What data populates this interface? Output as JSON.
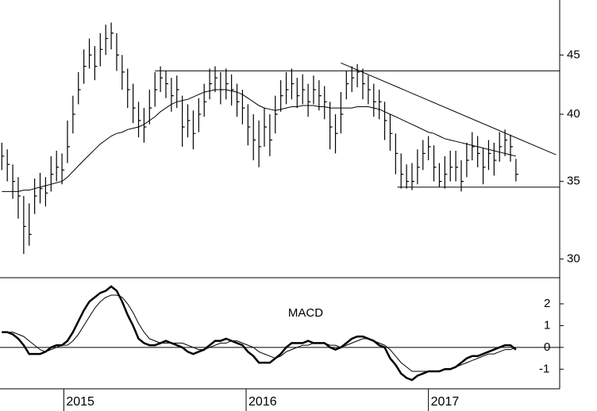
{
  "chart_data": {
    "type": "ohlc",
    "log_scale": true,
    "x": [
      2014.66,
      2014.69,
      2014.72,
      2014.75,
      2014.78,
      2014.81,
      2014.84,
      2014.87,
      2014.9,
      2014.93,
      2014.96,
      2014.99,
      2015.02,
      2015.05,
      2015.08,
      2015.11,
      2015.14,
      2015.17,
      2015.2,
      2015.23,
      2015.26,
      2015.29,
      2015.32,
      2015.35,
      2015.38,
      2015.41,
      2015.44,
      2015.47,
      2015.5,
      2015.53,
      2015.56,
      2015.59,
      2015.62,
      2015.65,
      2015.68,
      2015.71,
      2015.74,
      2015.77,
      2015.8,
      2015.83,
      2015.86,
      2015.89,
      2015.92,
      2015.95,
      2015.98,
      2016.01,
      2016.04,
      2016.07,
      2016.1,
      2016.13,
      2016.16,
      2016.19,
      2016.22,
      2016.25,
      2016.28,
      2016.31,
      2016.34,
      2016.37,
      2016.4,
      2016.43,
      2016.46,
      2016.49,
      2016.52,
      2016.55,
      2016.58,
      2016.61,
      2016.64,
      2016.67,
      2016.7,
      2016.73,
      2016.76,
      2016.79,
      2016.82,
      2016.85,
      2016.88,
      2016.91,
      2016.94,
      2016.97,
      2017.0,
      2017.03,
      2017.06,
      2017.09,
      2017.12,
      2017.15,
      2017.18,
      2017.21,
      2017.24,
      2017.27,
      2017.3,
      2017.33,
      2017.36,
      2017.39,
      2017.42,
      2017.45,
      2017.48
    ],
    "high": [
      37.8,
      37.3,
      36.2,
      35.3,
      34.0,
      33.5,
      35.2,
      35.6,
      35.3,
      36.8,
      37.2,
      37.0,
      39.5,
      41.5,
      43.5,
      45.5,
      46.5,
      45.8,
      47.0,
      47.8,
      48.0,
      47.0,
      45.0,
      43.8,
      42.5,
      41.0,
      40.5,
      42.0,
      43.5,
      44.0,
      43.6,
      43.0,
      43.2,
      41.5,
      40.8,
      40.3,
      41.3,
      42.5,
      43.8,
      44.0,
      43.5,
      43.8,
      43.3,
      42.5,
      42.0,
      40.8,
      40.0,
      39.5,
      40.5,
      40.0,
      41.5,
      42.8,
      43.5,
      43.8,
      43.0,
      43.3,
      42.5,
      43.2,
      42.8,
      42.3,
      41.0,
      40.0,
      41.8,
      43.6,
      44.0,
      44.2,
      43.8,
      43.2,
      42.5,
      42.0,
      41.0,
      40.0,
      38.5,
      37.0,
      36.2,
      36.3,
      37.3,
      38.0,
      38.3,
      37.6,
      36.3,
      36.8,
      37.2,
      37.2,
      36.5,
      37.8,
      38.6,
      38.3,
      37.4,
      38.0,
      37.8,
      38.6,
      38.8,
      38.4,
      36.6
    ],
    "low": [
      35.8,
      35.0,
      33.8,
      32.5,
      30.3,
      30.8,
      32.8,
      33.5,
      33.3,
      34.3,
      35.0,
      34.8,
      36.3,
      38.5,
      40.8,
      42.5,
      43.8,
      42.8,
      44.0,
      45.0,
      45.5,
      43.6,
      42.0,
      40.5,
      39.3,
      38.2,
      37.8,
      39.2,
      40.6,
      41.8,
      41.3,
      40.2,
      40.5,
      37.5,
      38.2,
      37.3,
      38.6,
      39.8,
      41.2,
      41.8,
      40.8,
      41.2,
      40.7,
      39.8,
      39.2,
      37.6,
      36.5,
      36.0,
      37.5,
      36.8,
      38.5,
      40.2,
      40.8,
      41.2,
      40.5,
      40.8,
      39.8,
      40.8,
      40.3,
      39.6,
      37.3,
      37.0,
      38.5,
      41.2,
      41.8,
      42.2,
      41.2,
      40.8,
      39.8,
      39.6,
      38.0,
      37.2,
      35.5,
      34.5,
      34.5,
      34.4,
      34.8,
      35.8,
      36.5,
      35.0,
      34.6,
      34.5,
      35.0,
      35.0,
      34.3,
      35.3,
      36.5,
      36.0,
      34.8,
      35.8,
      35.4,
      36.4,
      36.8,
      36.4,
      35.0
    ],
    "close": [
      36.8,
      36.2,
      35.0,
      34.0,
      32.0,
      31.5,
      34.0,
      34.5,
      34.2,
      35.5,
      36.0,
      35.8,
      37.5,
      40.0,
      42.0,
      44.0,
      45.0,
      44.0,
      45.5,
      46.5,
      47.0,
      45.0,
      43.5,
      42.0,
      40.5,
      39.5,
      39.0,
      40.5,
      42.0,
      43.0,
      42.5,
      41.5,
      42.0,
      39.0,
      39.5,
      38.5,
      40.0,
      41.0,
      42.5,
      43.0,
      42.0,
      42.5,
      42.0,
      41.0,
      40.5,
      39.0,
      38.0,
      37.5,
      39.0,
      38.0,
      40.0,
      41.5,
      42.0,
      42.5,
      41.5,
      42.0,
      41.0,
      42.0,
      41.5,
      41.0,
      39.0,
      38.5,
      40.0,
      42.5,
      43.0,
      43.5,
      42.5,
      42.0,
      41.0,
      41.0,
      39.5,
      38.5,
      37.0,
      35.5,
      35.0,
      35.0,
      36.0,
      37.0,
      37.5,
      36.0,
      35.0,
      35.5,
      36.0,
      36.0,
      35.0,
      36.5,
      37.5,
      37.0,
      36.0,
      37.0,
      36.5,
      37.5,
      38.0,
      37.5,
      35.5
    ],
    "moving_average": [
      34.3,
      34.3,
      34.3,
      34.3,
      34.4,
      34.4,
      34.5,
      34.6,
      34.7,
      34.8,
      34.9,
      35.0,
      35.3,
      35.7,
      36.1,
      36.5,
      36.9,
      37.3,
      37.7,
      38.0,
      38.3,
      38.5,
      38.6,
      38.8,
      38.9,
      39.0,
      39.2,
      39.5,
      39.8,
      40.2,
      40.5,
      40.8,
      41.0,
      41.1,
      41.2,
      41.4,
      41.6,
      41.8,
      41.9,
      42.0,
      42.0,
      42.0,
      41.9,
      41.8,
      41.6,
      41.3,
      41.0,
      40.7,
      40.5,
      40.4,
      40.3,
      40.4,
      40.5,
      40.6,
      40.6,
      40.7,
      40.7,
      40.7,
      40.6,
      40.6,
      40.5,
      40.5,
      40.5,
      40.5,
      40.5,
      40.6,
      40.6,
      40.6,
      40.5,
      40.4,
      40.2,
      40.0,
      39.8,
      39.6,
      39.4,
      39.2,
      39.0,
      38.8,
      38.6,
      38.5,
      38.3,
      38.1,
      38.0,
      37.9,
      37.8,
      37.7,
      37.6,
      37.5,
      37.4,
      37.3,
      37.2,
      37.1,
      37.0,
      36.9,
      36.8
    ],
    "lines": [
      {
        "x": [
          2015.5,
          2017.72
        ],
        "y": [
          43.6,
          43.6
        ]
      },
      {
        "x": [
          2016.52,
          2017.7
        ],
        "y": [
          44.3,
          36.9
        ]
      },
      {
        "x": [
          2016.83,
          2017.72
        ],
        "y": [
          34.6,
          34.6
        ]
      }
    ],
    "color": "#000000",
    "xlim": [
      2014.65,
      2017.72
    ],
    "xticks": [
      2015,
      2016,
      2017
    ],
    "ylim": [
      28.9,
      50.2
    ],
    "yticks": [
      30,
      35,
      40,
      45
    ],
    "macd": {
      "title": "MACD",
      "values": [
        0.7,
        0.7,
        0.6,
        0.4,
        0.1,
        -0.3,
        -0.3,
        -0.3,
        -0.2,
        0.0,
        0.1,
        0.1,
        0.3,
        0.7,
        1.2,
        1.7,
        2.1,
        2.3,
        2.5,
        2.6,
        2.8,
        2.6,
        2.1,
        1.5,
        1.0,
        0.4,
        0.2,
        0.1,
        0.1,
        0.2,
        0.3,
        0.2,
        0.1,
        0.0,
        -0.2,
        -0.3,
        -0.2,
        -0.1,
        0.1,
        0.3,
        0.3,
        0.4,
        0.3,
        0.2,
        0.1,
        -0.2,
        -0.4,
        -0.7,
        -0.7,
        -0.7,
        -0.5,
        -0.3,
        0.0,
        0.2,
        0.2,
        0.2,
        0.3,
        0.2,
        0.2,
        0.2,
        0.0,
        -0.1,
        0.0,
        0.2,
        0.4,
        0.5,
        0.5,
        0.4,
        0.3,
        0.1,
        0.0,
        -0.5,
        -0.8,
        -1.2,
        -1.4,
        -1.5,
        -1.3,
        -1.2,
        -1.1,
        -1.1,
        -1.1,
        -1.0,
        -1.0,
        -0.9,
        -0.7,
        -0.5,
        -0.4,
        -0.4,
        -0.3,
        -0.2,
        -0.1,
        0.0,
        0.1,
        0.1,
        -0.1
      ],
      "signal": [
        0.7,
        0.7,
        0.7,
        0.6,
        0.5,
        0.3,
        0.1,
        -0.1,
        -0.2,
        -0.1,
        0.0,
        0.1,
        0.1,
        0.3,
        0.6,
        1.0,
        1.4,
        1.8,
        2.1,
        2.3,
        2.4,
        2.4,
        2.3,
        2.0,
        1.6,
        1.1,
        0.7,
        0.4,
        0.3,
        0.2,
        0.2,
        0.2,
        0.2,
        0.2,
        0.1,
        0.0,
        -0.1,
        -0.1,
        0.0,
        0.1,
        0.2,
        0.2,
        0.3,
        0.3,
        0.2,
        0.1,
        0.0,
        -0.2,
        -0.3,
        -0.4,
        -0.5,
        -0.4,
        -0.2,
        -0.1,
        0.0,
        0.1,
        0.1,
        0.2,
        0.2,
        0.2,
        0.1,
        0.1,
        0.0,
        0.1,
        0.2,
        0.3,
        0.4,
        0.4,
        0.3,
        0.2,
        0.1,
        -0.1,
        -0.4,
        -0.7,
        -0.9,
        -1.1,
        -1.1,
        -1.1,
        -1.1,
        -1.1,
        -1.1,
        -1.0,
        -1.0,
        -0.9,
        -0.8,
        -0.7,
        -0.6,
        -0.5,
        -0.4,
        -0.3,
        -0.3,
        -0.2,
        -0.1,
        -0.1,
        0.0
      ],
      "ylim": [
        -1.9,
        3.2
      ],
      "yticks": [
        -1,
        0,
        1,
        2
      ],
      "zero_line": true
    }
  }
}
